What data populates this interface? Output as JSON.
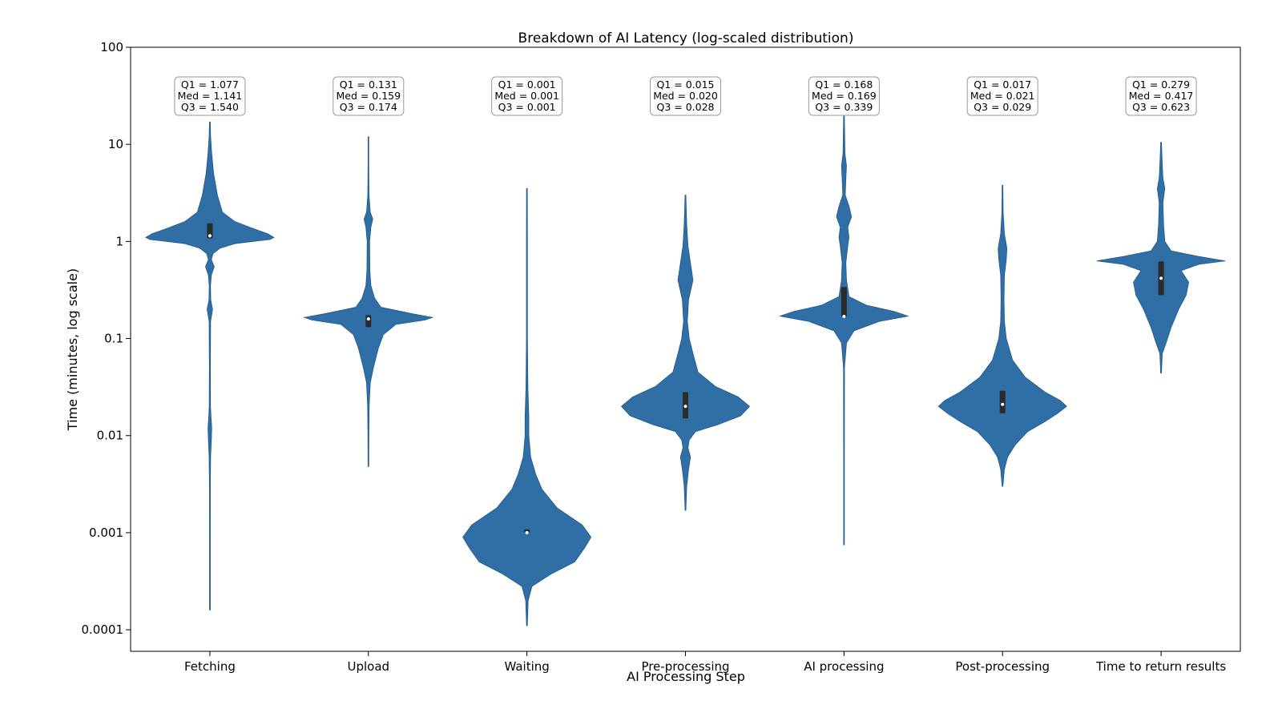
{
  "chart_data": {
    "type": "violin",
    "title": "Breakdown of AI Latency (log-scaled distribution)",
    "xlabel": "AI Processing Step",
    "ylabel": "Time (minutes, log scale)",
    "yscale": "log",
    "ylim": [
      6e-05,
      100
    ],
    "yticks": [
      {
        "value": 0.0001,
        "label": "0.0001"
      },
      {
        "value": 0.001,
        "label": "0.001"
      },
      {
        "value": 0.01,
        "label": "0.01"
      },
      {
        "value": 0.1,
        "label": "0.1"
      },
      {
        "value": 1,
        "label": "1"
      },
      {
        "value": 10,
        "label": "10"
      },
      {
        "value": 100,
        "label": "100"
      }
    ],
    "grid": false,
    "color": "#2f6fa6",
    "categories": [
      "Fetching",
      "Upload",
      "Waiting",
      "Pre-processing",
      "AI processing",
      "Post-processing",
      "Time to return results"
    ],
    "series": [
      {
        "category": "Fetching",
        "q1": 1.077,
        "median": 1.141,
        "q3": 1.54,
        "q1_label": "Q1 = 1.077",
        "median_label": "Med = 1.141",
        "q3_label": "Q3 = 1.540",
        "min": 0.00016,
        "max": 17,
        "density": [
          [
            0.00016,
            0.3
          ],
          [
            0.0004,
            0.3
          ],
          [
            0.001,
            0.3
          ],
          [
            0.003,
            0.35
          ],
          [
            0.006,
            0.6
          ],
          [
            0.009,
            1.2
          ],
          [
            0.012,
            1.5
          ],
          [
            0.015,
            1.0
          ],
          [
            0.02,
            0.5
          ],
          [
            0.05,
            0.4
          ],
          [
            0.15,
            0.6
          ],
          [
            0.2,
            2.2
          ],
          [
            0.25,
            0.7
          ],
          [
            0.35,
            0.5
          ],
          [
            0.45,
            1.2
          ],
          [
            0.55,
            3.5
          ],
          [
            0.65,
            1.2
          ],
          [
            0.75,
            2.5
          ],
          [
            0.85,
            8
          ],
          [
            0.95,
            20
          ],
          [
            1.05,
            48
          ],
          [
            1.1,
            51
          ],
          [
            1.2,
            46
          ],
          [
            1.35,
            35
          ],
          [
            1.6,
            20
          ],
          [
            2.0,
            10
          ],
          [
            3.0,
            6
          ],
          [
            5.0,
            3
          ],
          [
            8.0,
            1.5
          ],
          [
            12.0,
            0.6
          ],
          [
            17.0,
            0.3
          ]
        ]
      },
      {
        "category": "Upload",
        "q1": 0.131,
        "median": 0.159,
        "q3": 0.174,
        "q1_label": "Q1 = 0.131",
        "median_label": "Med = 0.159",
        "q3_label": "Q3 = 0.174",
        "min": 0.0048,
        "max": 12,
        "density": [
          [
            0.0048,
            0.3
          ],
          [
            0.01,
            0.4
          ],
          [
            0.02,
            0.6
          ],
          [
            0.035,
            1.5
          ],
          [
            0.05,
            4
          ],
          [
            0.08,
            8
          ],
          [
            0.11,
            12
          ],
          [
            0.14,
            22
          ],
          [
            0.155,
            45
          ],
          [
            0.165,
            51
          ],
          [
            0.18,
            35
          ],
          [
            0.21,
            10
          ],
          [
            0.26,
            5
          ],
          [
            0.35,
            2
          ],
          [
            0.5,
            1.2
          ],
          [
            1.0,
            1
          ],
          [
            1.4,
            2
          ],
          [
            1.7,
            3.5
          ],
          [
            2.0,
            1.5
          ],
          [
            3.0,
            0.5
          ],
          [
            6.0,
            0.3
          ],
          [
            12.0,
            0.3
          ]
        ]
      },
      {
        "category": "Waiting",
        "q1": 0.001,
        "median": 0.001,
        "q3": 0.001,
        "q1_label": "Q1 = 0.001",
        "median_label": "Med = 0.001",
        "q3_label": "Q3 = 0.001",
        "min": 0.00011,
        "max": 3.5,
        "density": [
          [
            0.00011,
            0.3
          ],
          [
            0.0002,
            1
          ],
          [
            0.00028,
            4
          ],
          [
            0.00038,
            20
          ],
          [
            0.0005,
            38
          ],
          [
            0.0007,
            46
          ],
          [
            0.0009,
            51
          ],
          [
            0.0012,
            44
          ],
          [
            0.0018,
            24
          ],
          [
            0.0028,
            12
          ],
          [
            0.004,
            7
          ],
          [
            0.006,
            3
          ],
          [
            0.01,
            1.5
          ],
          [
            0.016,
            1.5
          ],
          [
            0.03,
            0.8
          ],
          [
            0.1,
            0.4
          ],
          [
            1.0,
            0.4
          ],
          [
            3.5,
            0.3
          ]
        ]
      },
      {
        "category": "Pre-processing",
        "q1": 0.015,
        "median": 0.02,
        "q3": 0.028,
        "q1_label": "Q1 = 0.015",
        "median_label": "Med = 0.020",
        "q3_label": "Q3 = 0.028",
        "min": 0.0017,
        "max": 3.0,
        "density": [
          [
            0.0017,
            0.3
          ],
          [
            0.003,
            1
          ],
          [
            0.0045,
            2.5
          ],
          [
            0.006,
            4
          ],
          [
            0.0075,
            2
          ],
          [
            0.009,
            3
          ],
          [
            0.011,
            8
          ],
          [
            0.013,
            26
          ],
          [
            0.016,
            44
          ],
          [
            0.02,
            51
          ],
          [
            0.025,
            42
          ],
          [
            0.032,
            24
          ],
          [
            0.045,
            10
          ],
          [
            0.07,
            6
          ],
          [
            0.1,
            3
          ],
          [
            0.15,
            1.5
          ],
          [
            0.25,
            2.5
          ],
          [
            0.4,
            6
          ],
          [
            0.6,
            4
          ],
          [
            0.9,
            2
          ],
          [
            1.5,
            1
          ],
          [
            3.0,
            0.3
          ]
        ]
      },
      {
        "category": "AI processing",
        "q1": 0.168,
        "median": 0.169,
        "q3": 0.339,
        "q1_label": "Q1 = 0.168",
        "median_label": "Med = 0.169",
        "q3_label": "Q3 = 0.339",
        "min": 0.00075,
        "max": 20,
        "density": [
          [
            0.00075,
            0.3
          ],
          [
            0.005,
            0.3
          ],
          [
            0.05,
            0.4
          ],
          [
            0.09,
            2
          ],
          [
            0.12,
            8
          ],
          [
            0.15,
            28
          ],
          [
            0.17,
            51
          ],
          [
            0.19,
            40
          ],
          [
            0.22,
            18
          ],
          [
            0.27,
            4
          ],
          [
            0.4,
            2
          ],
          [
            0.6,
            1.5
          ],
          [
            0.9,
            3
          ],
          [
            1.1,
            4
          ],
          [
            1.4,
            3
          ],
          [
            1.8,
            6
          ],
          [
            2.3,
            4
          ],
          [
            3.0,
            1
          ],
          [
            4.5,
            1.5
          ],
          [
            6.0,
            2
          ],
          [
            8.0,
            0.8
          ],
          [
            20,
            0.3
          ]
        ]
      },
      {
        "category": "Post-processing",
        "q1": 0.017,
        "median": 0.021,
        "q3": 0.029,
        "q1_label": "Q1 = 0.017",
        "median_label": "Med = 0.021",
        "q3_label": "Q3 = 0.029",
        "min": 0.003,
        "max": 3.8,
        "density": [
          [
            0.003,
            0.3
          ],
          [
            0.0045,
            1.5
          ],
          [
            0.006,
            4
          ],
          [
            0.008,
            10
          ],
          [
            0.011,
            20
          ],
          [
            0.014,
            34
          ],
          [
            0.017,
            44
          ],
          [
            0.02,
            51
          ],
          [
            0.023,
            46
          ],
          [
            0.028,
            34
          ],
          [
            0.04,
            18
          ],
          [
            0.06,
            8
          ],
          [
            0.1,
            3
          ],
          [
            0.15,
            1.5
          ],
          [
            0.25,
            1.2
          ],
          [
            0.45,
            1.5
          ],
          [
            0.65,
            3
          ],
          [
            0.85,
            3.5
          ],
          [
            1.2,
            1.5
          ],
          [
            2.0,
            0.5
          ],
          [
            3.8,
            0.3
          ]
        ]
      },
      {
        "category": "Time to return results",
        "q1": 0.279,
        "median": 0.417,
        "q3": 0.623,
        "q1_label": "Q1 = 0.279",
        "median_label": "Med = 0.417",
        "q3_label": "Q3 = 0.623",
        "min": 0.044,
        "max": 10.5,
        "density": [
          [
            0.044,
            0.3
          ],
          [
            0.07,
            1
          ],
          [
            0.09,
            4
          ],
          [
            0.13,
            8
          ],
          [
            0.2,
            14
          ],
          [
            0.28,
            20
          ],
          [
            0.38,
            22
          ],
          [
            0.5,
            16
          ],
          [
            0.58,
            30
          ],
          [
            0.63,
            51
          ],
          [
            0.7,
            30
          ],
          [
            0.8,
            8
          ],
          [
            1.0,
            3
          ],
          [
            1.5,
            2
          ],
          [
            2.5,
            1.5
          ],
          [
            3.5,
            3
          ],
          [
            4.5,
            1.5
          ],
          [
            7.0,
            0.8
          ],
          [
            10.5,
            0.3
          ]
        ]
      }
    ]
  }
}
